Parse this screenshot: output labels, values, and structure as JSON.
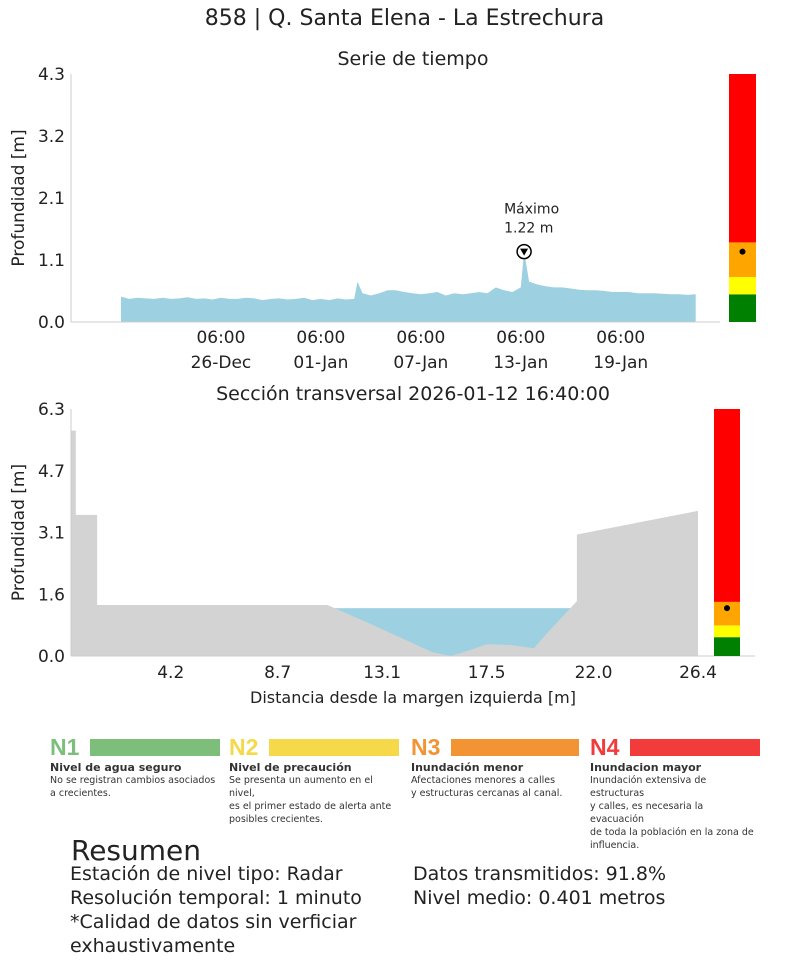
{
  "title": "858 | Q. Santa Elena - La Estrechura",
  "chart_data": [
    {
      "type": "area",
      "title": "Serie de tiempo",
      "ylabel": "Profundidad [m]",
      "ylim": [
        0,
        4.3
      ],
      "yticks": [
        "0.0",
        "1.1",
        "2.1",
        "3.2",
        "4.3"
      ],
      "xtick_labels": [
        "06:00\n26-Dec",
        "06:00\n01-Jan",
        "06:00\n07-Jan",
        "06:00\n13-Jan",
        "06:00\n19-Jan"
      ],
      "xtick_days": [
        6,
        12,
        18,
        24,
        30
      ],
      "x_start_day": 0,
      "x_end_day": 34.7,
      "series_color": "#9dd1e1",
      "series_days": [
        0,
        0.5,
        1,
        1.5,
        2,
        2.5,
        3,
        3.5,
        4,
        4.5,
        5,
        5.5,
        6,
        6.5,
        7,
        7.5,
        8,
        8.5,
        9,
        9.5,
        10,
        10.5,
        11,
        11.5,
        12,
        12.5,
        13,
        13.5,
        14,
        14.2,
        14.5,
        15,
        15.5,
        16,
        16.5,
        17,
        17.5,
        18,
        18.5,
        19,
        19.5,
        20,
        20.5,
        21,
        21.5,
        22,
        22.5,
        23,
        23.5,
        24,
        24.2,
        24.5,
        25,
        25.5,
        26,
        26.5,
        27,
        27.5,
        28,
        28.5,
        29,
        29.5,
        30,
        30.5,
        31,
        31.5,
        32,
        32.5,
        33,
        33.5,
        34,
        34.5
      ],
      "series_values": [
        0.44,
        0.4,
        0.42,
        0.41,
        0.4,
        0.42,
        0.4,
        0.41,
        0.43,
        0.4,
        0.41,
        0.39,
        0.42,
        0.4,
        0.4,
        0.42,
        0.41,
        0.38,
        0.4,
        0.41,
        0.39,
        0.4,
        0.42,
        0.38,
        0.4,
        0.38,
        0.41,
        0.39,
        0.4,
        0.7,
        0.5,
        0.46,
        0.5,
        0.55,
        0.55,
        0.52,
        0.5,
        0.48,
        0.5,
        0.52,
        0.46,
        0.5,
        0.48,
        0.5,
        0.52,
        0.5,
        0.6,
        0.55,
        0.52,
        0.6,
        1.22,
        0.7,
        0.65,
        0.62,
        0.6,
        0.6,
        0.58,
        0.56,
        0.55,
        0.55,
        0.54,
        0.52,
        0.52,
        0.52,
        0.5,
        0.5,
        0.5,
        0.49,
        0.48,
        0.48,
        0.47,
        0.48
      ],
      "annotation": {
        "label": "Máximo",
        "value_text": "1.22 m",
        "day": 24.2,
        "value": 1.22
      },
      "alert_bar": {
        "levels": [
          {
            "from": 0,
            "to": 0.48,
            "color": "#008000"
          },
          {
            "from": 0.48,
            "to": 0.78,
            "color": "#ffff00"
          },
          {
            "from": 0.78,
            "to": 1.38,
            "color": "#ffa500"
          },
          {
            "from": 1.38,
            "to": 4.3,
            "color": "#ff0000"
          }
        ],
        "current_value": 1.22
      }
    },
    {
      "type": "area",
      "title": "Sección transversal 2026-01-12 16:40:00",
      "ylabel": "Profundidad [m]",
      "xlabel": "Distancia desde la margen izquierda [m]",
      "ylim": [
        0,
        6.3
      ],
      "xlim": [
        0,
        26.4
      ],
      "yticks": [
        "0.0",
        "1.6",
        "3.1",
        "4.7",
        "6.3"
      ],
      "xticks": [
        "4.2",
        "8.7",
        "13.1",
        "17.5",
        "22.0",
        "26.4"
      ],
      "terrain_color": "#d3d3d3",
      "water_color": "#9dd1e1",
      "water_level": 1.22,
      "terrain_x": [
        0,
        0.2,
        0.2,
        1.1,
        1.1,
        10.8,
        12.5,
        14.3,
        15.2,
        16.0,
        16.8,
        17.5,
        18.5,
        19.5,
        20.0,
        21.3,
        21.3,
        26.4,
        26.4
      ],
      "terrain_y": [
        5.75,
        5.75,
        3.6,
        3.6,
        1.3,
        1.3,
        0.85,
        0.35,
        0.1,
        0.0,
        0.15,
        0.3,
        0.28,
        0.2,
        0.55,
        1.4,
        3.1,
        3.7,
        0
      ],
      "alert_bar": {
        "levels": [
          {
            "from": 0,
            "to": 0.48,
            "color": "#008000"
          },
          {
            "from": 0.48,
            "to": 0.78,
            "color": "#ffff00"
          },
          {
            "from": 0.78,
            "to": 1.38,
            "color": "#ffa500"
          },
          {
            "from": 1.38,
            "to": 6.3,
            "color": "#ff0000"
          }
        ],
        "current_value": 1.22
      }
    }
  ],
  "legend": [
    {
      "code": "N1",
      "color": "#7dbf7a",
      "code_color": "#7dbf7a",
      "title": "Nivel de agua seguro",
      "desc": "No se registran cambios asociados\na crecientes."
    },
    {
      "code": "N2",
      "color": "#f5d94a",
      "code_color": "#f5d94a",
      "title": "Nivel de precaución",
      "desc": "Se presenta un aumento en el nivel,\nes el primer estado de alerta ante\nposibles crecientes."
    },
    {
      "code": "N3",
      "color": "#f29433",
      "code_color": "#f29433",
      "title": "Inundación menor",
      "desc": "Afectaciones menores a calles\ny estructuras cercanas al canal."
    },
    {
      "code": "N4",
      "color": "#f23c3c",
      "code_color": "#f23c3c",
      "title": "Inundacion mayor",
      "desc": "Inundación extensiva de estructuras\ny calles, es necesaria la evacuación\nde toda la población en la zona de\ninfluencia."
    }
  ],
  "resumen": {
    "title": "Resumen",
    "left": [
      "Estación de nivel tipo: Radar",
      "Resolución temporal: 1 minuto",
      "*Calidad de datos sin verficiar",
      "exhaustivamente"
    ],
    "right": [
      "Datos transmitidos: 91.8%",
      "Nivel medio: 0.401 metros"
    ]
  }
}
